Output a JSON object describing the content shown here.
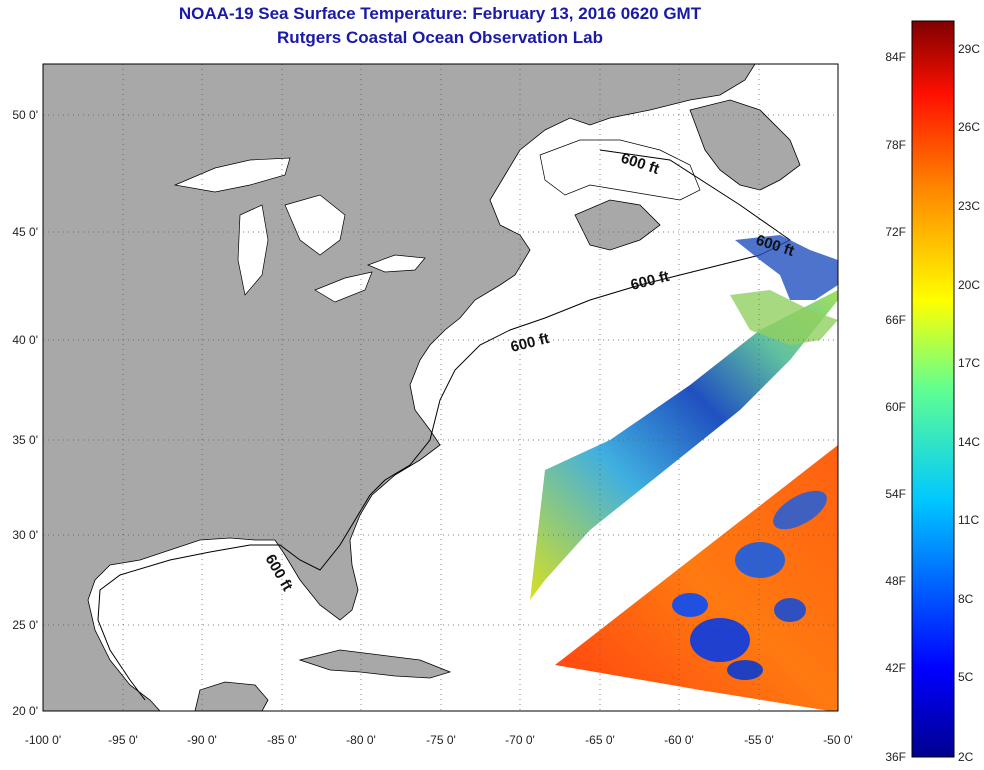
{
  "header": {
    "title": "NOAA-19 Sea Surface Temperature:  February 13, 2016 0620 GMT",
    "subtitle": "Rutgers Coastal Ocean Observation Lab"
  },
  "map": {
    "lon_range": [
      -100,
      -50
    ],
    "lat_range": [
      20,
      52
    ],
    "lon_ticks": [
      "-100 0'",
      "-95 0'",
      "-90 0'",
      "-85 0'",
      "-80 0'",
      "-75 0'",
      "-70 0'",
      "-65 0'",
      "-60 0'",
      "-55 0'",
      "-50 0'"
    ],
    "lat_ticks": [
      "20 0'",
      "25 0'",
      "30 0'",
      "35 0'",
      "40 0'",
      "45 0'",
      "50 0'"
    ],
    "land_color": "#a8a8a8",
    "ocean_color": "#ffffff",
    "contour_labels": [
      "600 ft",
      "600 ft",
      "600 ft",
      "600 ft",
      "600 ft"
    ]
  },
  "colorbar": {
    "fahrenheit_labels": [
      "84F",
      "78F",
      "72F",
      "66F",
      "60F",
      "54F",
      "48F",
      "42F",
      "36F"
    ],
    "celsius_labels": [
      "29C",
      "26C",
      "23C",
      "20C",
      "17C",
      "14C",
      "11C",
      "8C",
      "5C",
      "2C"
    ],
    "colors": [
      "#7f0000",
      "#ff0000",
      "#ff8000",
      "#ffff00",
      "#80ff80",
      "#00ffff",
      "#0080ff",
      "#0000ff",
      "#00008f"
    ]
  }
}
